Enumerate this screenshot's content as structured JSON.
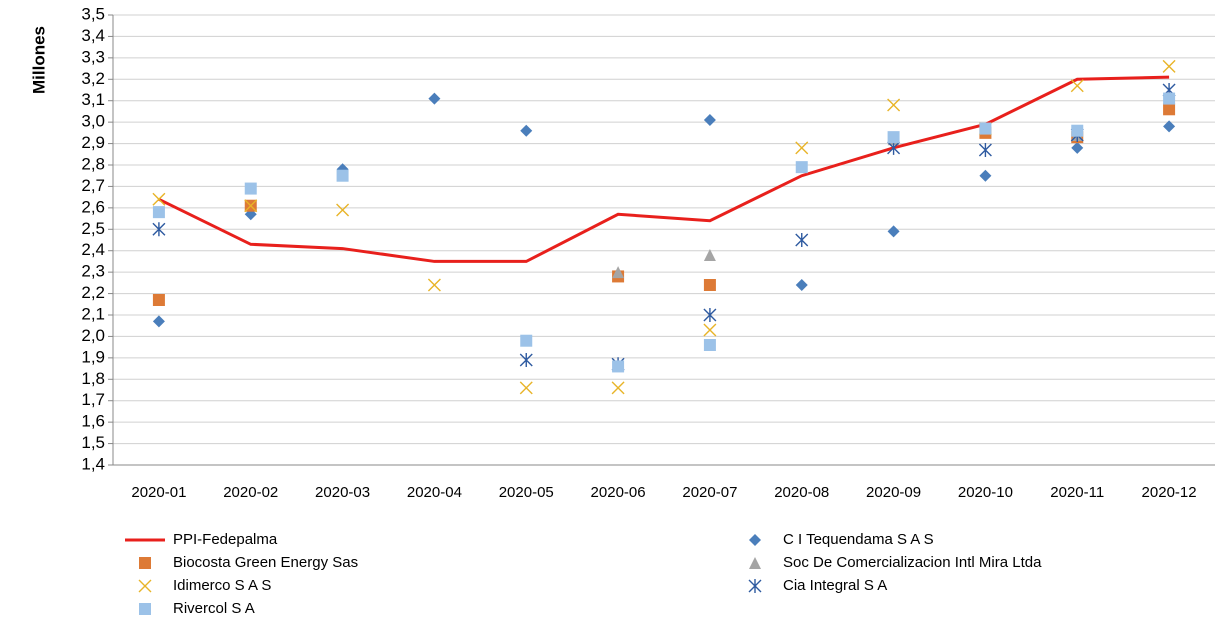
{
  "chart_data": {
    "type": "line_scatter",
    "y_axis_label": "Millones",
    "categories": [
      "2020-01",
      "2020-02",
      "2020-03",
      "2020-04",
      "2020-05",
      "2020-06",
      "2020-07",
      "2020-08",
      "2020-09",
      "2020-10",
      "2020-11",
      "2020-12"
    ],
    "ylim": [
      1.4,
      3.5
    ],
    "yticks": [
      {
        "value": 1.4,
        "label": "1,4"
      },
      {
        "value": 1.5,
        "label": "1,5"
      },
      {
        "value": 1.6,
        "label": "1,6"
      },
      {
        "value": 1.7,
        "label": "1,7"
      },
      {
        "value": 1.8,
        "label": "1,8"
      },
      {
        "value": 1.9,
        "label": "1,9"
      },
      {
        "value": 2.0,
        "label": "2,0"
      },
      {
        "value": 2.1,
        "label": "2,1"
      },
      {
        "value": 2.2,
        "label": "2,2"
      },
      {
        "value": 2.3,
        "label": "2,3"
      },
      {
        "value": 2.4,
        "label": "2,4"
      },
      {
        "value": 2.5,
        "label": "2,5"
      },
      {
        "value": 2.6,
        "label": "2,6"
      },
      {
        "value": 2.7,
        "label": "2,7"
      },
      {
        "value": 2.8,
        "label": "2,8"
      },
      {
        "value": 2.9,
        "label": "2,9"
      },
      {
        "value": 3.0,
        "label": "3,0"
      },
      {
        "value": 3.1,
        "label": "3,1"
      },
      {
        "value": 3.2,
        "label": "3,2"
      },
      {
        "value": 3.3,
        "label": "3,3"
      },
      {
        "value": 3.4,
        "label": "3,4"
      },
      {
        "value": 3.5,
        "label": "3,5"
      }
    ],
    "grid": true,
    "legend": "bottom",
    "series": [
      {
        "name": "PPI-Fedepalma",
        "color": "#e8201c",
        "marker": "line",
        "values": [
          2.64,
          2.43,
          2.41,
          2.35,
          2.35,
          2.57,
          2.54,
          2.75,
          2.88,
          2.99,
          3.2,
          3.21
        ]
      },
      {
        "name": "C I Tequendama S A S",
        "color": "#4a7ebb",
        "marker": "diamond",
        "values": [
          2.07,
          2.57,
          2.78,
          3.11,
          2.96,
          null,
          3.01,
          2.24,
          2.49,
          2.75,
          2.88,
          2.98
        ]
      },
      {
        "name": "Biocosta Green Energy Sas",
        "color": "#dd7a36",
        "marker": "square",
        "values": [
          2.17,
          2.61,
          null,
          null,
          null,
          2.28,
          2.24,
          null,
          null,
          2.95,
          2.93,
          3.06
        ]
      },
      {
        "name": "Soc De Comercializacion Intl Mira Ltda",
        "color": "#a5a5a5",
        "marker": "triangle",
        "values": [
          null,
          null,
          null,
          null,
          null,
          2.3,
          2.38,
          null,
          2.92,
          null,
          2.94,
          null
        ]
      },
      {
        "name": "Idimerco S A S",
        "color": "#e8b428",
        "marker": "x",
        "values": [
          2.64,
          2.61,
          2.59,
          2.24,
          1.76,
          1.76,
          2.03,
          2.88,
          3.08,
          2.97,
          3.17,
          3.26
        ]
      },
      {
        "name": "Cia Integral S A",
        "color": "#2e5aa0",
        "marker": "asterisk",
        "values": [
          2.5,
          null,
          null,
          null,
          1.89,
          1.87,
          2.1,
          2.45,
          2.88,
          2.87,
          2.94,
          3.15
        ]
      },
      {
        "name": "Rivercol S A",
        "color": "#9cc2e8",
        "marker": "square",
        "values": [
          2.58,
          2.69,
          2.75,
          null,
          1.98,
          1.86,
          1.96,
          2.79,
          2.93,
          2.97,
          2.96,
          3.11
        ]
      }
    ]
  }
}
